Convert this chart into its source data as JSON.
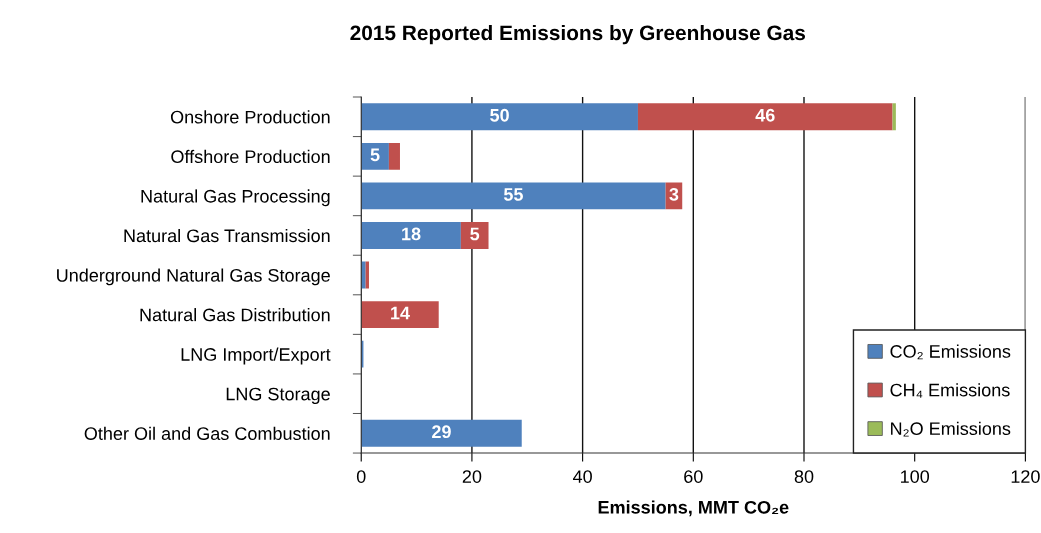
{
  "chart_data": {
    "type": "bar",
    "orientation": "horizontal",
    "stacked": true,
    "title": "2015 Reported Emissions by Greenhouse Gas",
    "xlabel": "Emissions, MMT CO₂e",
    "categories": [
      "Onshore Production",
      "Offshore Production",
      "Natural Gas Processing",
      "Natural Gas Transmission",
      "Underground Natural Gas Storage",
      "Natural Gas Distribution",
      "LNG Import/Export",
      "LNG Storage",
      "Other Oil and Gas Combustion"
    ],
    "series": [
      {
        "name": "CO₂ Emissions",
        "color": "#4f81bd",
        "values": [
          50,
          5,
          55,
          18,
          0.8,
          null,
          0.4,
          null,
          29
        ],
        "value_labels": [
          "50",
          "5",
          "55",
          "18",
          null,
          null,
          null,
          null,
          "29"
        ]
      },
      {
        "name": "CH₄ Emissions",
        "color": "#c0504d",
        "values": [
          46,
          2,
          3,
          5,
          0.6,
          14,
          null,
          null,
          null
        ],
        "value_labels": [
          "46",
          null,
          "3",
          "5",
          null,
          "14",
          null,
          null,
          null
        ]
      },
      {
        "name": "N₂O Emissions",
        "color": "#9bbb59",
        "values": [
          0.6,
          null,
          null,
          null,
          null,
          null,
          null,
          null,
          null
        ],
        "value_labels": [
          null,
          null,
          null,
          null,
          null,
          null,
          null,
          null,
          null
        ]
      }
    ],
    "xlim": [
      0,
      120
    ],
    "xticks": [
      0,
      20,
      40,
      60,
      80,
      100,
      120
    ],
    "grid": "x",
    "legend": "bottom right"
  }
}
